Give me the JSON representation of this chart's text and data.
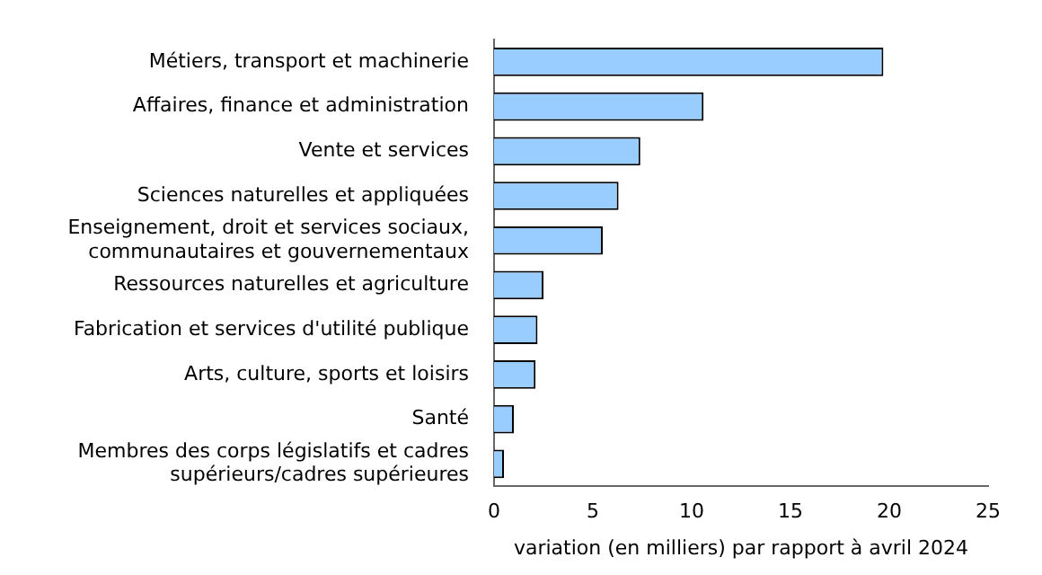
{
  "chart_data": {
    "type": "bar",
    "orientation": "horizontal",
    "xlabel": "variation (en milliers) par rapport à avril 2024",
    "categories": [
      "Métiers, transport et machinerie",
      "Affaires, finance et administration",
      "Vente et services",
      "Sciences naturelles et appliquées",
      "Enseignement, droit et services sociaux, communautaires et gouvernementaux",
      "Ressources naturelles et agriculture",
      "Fabrication et services d'utilité publique",
      "Arts, culture, sports et loisirs",
      "Santé",
      "Membres des corps législatifs et cadres supérieurs/cadres supérieures"
    ],
    "values": [
      19.7,
      10.6,
      7.4,
      6.3,
      5.5,
      2.5,
      2.2,
      2.1,
      1.0,
      0.5
    ],
    "color": "#99ccff",
    "xlim": [
      0,
      25
    ],
    "xticks": [
      0,
      5,
      10,
      15,
      20,
      25
    ],
    "grid": false,
    "legend": false
  }
}
